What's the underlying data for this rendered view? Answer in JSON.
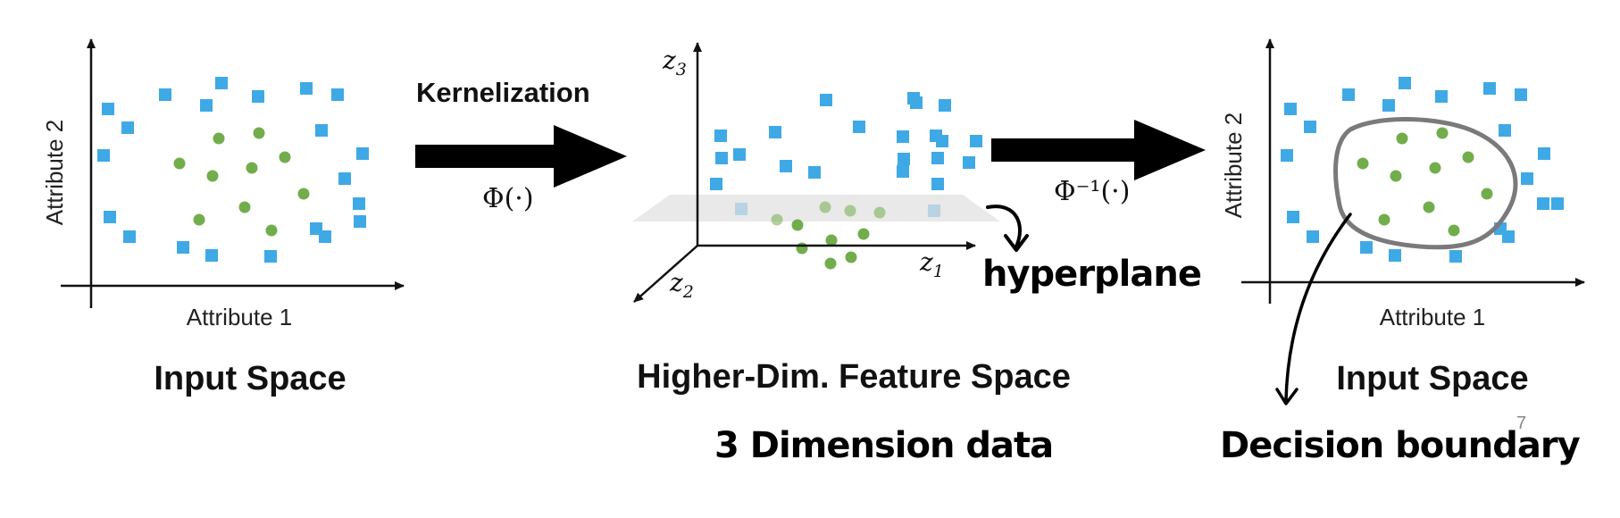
{
  "colors": {
    "square": "#3fa9e6",
    "circle": "#72ad4c",
    "axis": "#111111",
    "boundary": "#7a7a7a",
    "plane": "#e2e2e2"
  },
  "left_panel": {
    "axis_x_label": "Attribute 1",
    "axis_y_label": "Attribute 2",
    "title": "Input Space"
  },
  "kernel_arrow": {
    "label": "Kernelization",
    "function": "Φ(·)"
  },
  "middle_panel": {
    "axis_z1": "z",
    "axis_z1_sub": "1",
    "axis_z2": "z",
    "axis_z2_sub": "2",
    "axis_z3": "z",
    "axis_z3_sub": "3",
    "title": "Higher-Dim. Feature Space",
    "hyperplane_note": "hyperplane",
    "dimension_note": "3 Dimension data"
  },
  "inverse_arrow": {
    "function": "Φ⁻¹(·)"
  },
  "right_panel": {
    "axis_x_label": "Attribute 1",
    "axis_y_label": "Attribute 2",
    "title": "Input Space",
    "boundary_note": "Decision boundary"
  },
  "page_number": "7"
}
